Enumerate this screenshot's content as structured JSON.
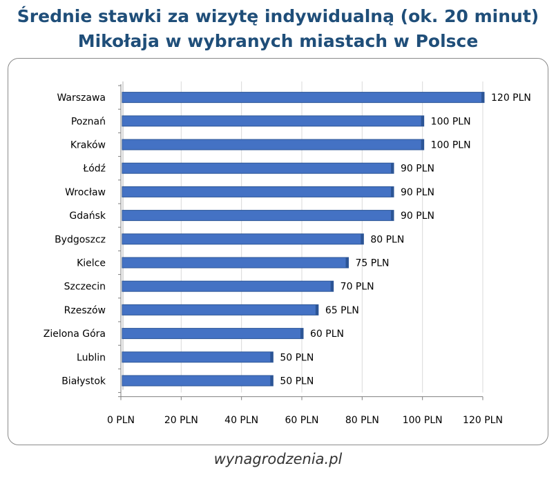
{
  "title_line1": "Średnie stawki za wizytę indywidualną (ok. 20 minut)",
  "title_line2": "Mikołaja w wybranych miastach w Polsce",
  "source": "wynagrodzenia.pl",
  "colors": {
    "title": "#1f4e79",
    "bar": "#4472c4",
    "bar_edge": "#2c5596"
  },
  "chart_data": {
    "type": "bar",
    "orientation": "horizontal",
    "categories": [
      "Warszawa",
      "Poznań",
      "Kraków",
      "Łódź",
      "Wrocław",
      "Gdańsk",
      "Bydgoszcz",
      "Kielce",
      "Szczecin",
      "Rzeszów",
      "Zielona Góra",
      "Lublin",
      "Białystok"
    ],
    "values": [
      120,
      100,
      100,
      90,
      90,
      90,
      80,
      75,
      70,
      65,
      60,
      50,
      50
    ],
    "data_labels": [
      "120 PLN",
      "100 PLN",
      "100 PLN",
      "90 PLN",
      "90 PLN",
      "90 PLN",
      "80 PLN",
      "75 PLN",
      "70 PLN",
      "65 PLN",
      "60 PLN",
      "50 PLN",
      "50 PLN"
    ],
    "x_ticks": [
      0,
      20,
      40,
      60,
      80,
      100,
      120
    ],
    "x_tick_labels": [
      "0 PLN",
      "20 PLN",
      "40 PLN",
      "60 PLN",
      "80 PLN",
      "100 PLN",
      "120 PLN"
    ],
    "xlim": [
      0,
      120
    ],
    "grid": "vertical",
    "legend": "none"
  }
}
